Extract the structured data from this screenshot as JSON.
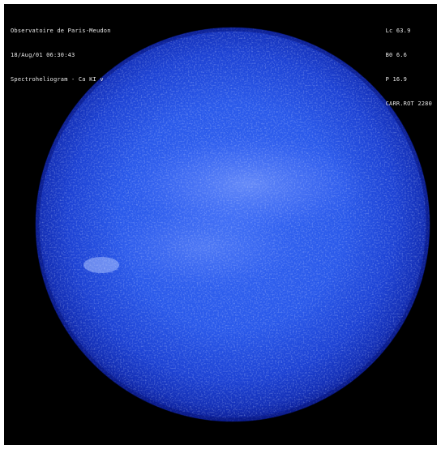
{
  "header_left": {
    "observatory": "Observatoire de Paris-Meudon",
    "datetime": "18/Aug/01 06:30:43",
    "instrument": "Spectroheliogram - Ca KI v"
  },
  "header_right": {
    "line1": "Lc 63.9",
    "line2": "B0 6.6",
    "line3": "P 16.9",
    "line4": "CARR.ROT 2280"
  },
  "colors": {
    "background": "#000000",
    "disk_center": "#2f62f0",
    "disk_limb": "#0a1ea8",
    "plage": "#9fb8ff"
  }
}
